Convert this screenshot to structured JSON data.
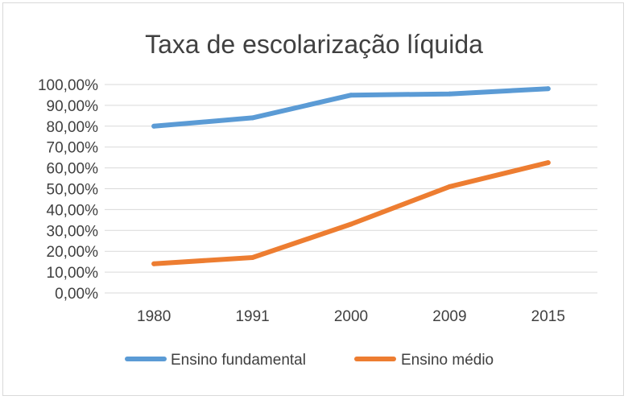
{
  "chart_data": {
    "type": "line",
    "title": "Taxa de escolarização líquida",
    "categories": [
      "1980",
      "1991",
      "2000",
      "2009",
      "2015"
    ],
    "series": [
      {
        "name": "Ensino fundamental",
        "values": [
          80.0,
          84.0,
          94.9,
          95.5,
          98.0
        ],
        "color": "#5b9bd5"
      },
      {
        "name": "Ensino médio",
        "values": [
          14.0,
          17.0,
          33.0,
          51.0,
          62.5
        ],
        "color": "#ed7d31"
      }
    ],
    "ylim": [
      0,
      100
    ],
    "y_ticks": [
      "0,00%",
      "10,00%",
      "20,00%",
      "30,00%",
      "40,00%",
      "50,00%",
      "60,00%",
      "70,00%",
      "80,00%",
      "90,00%",
      "100,00%"
    ],
    "grid": true,
    "legend_position": "bottom",
    "gridline_color": "#d9d9d9"
  }
}
